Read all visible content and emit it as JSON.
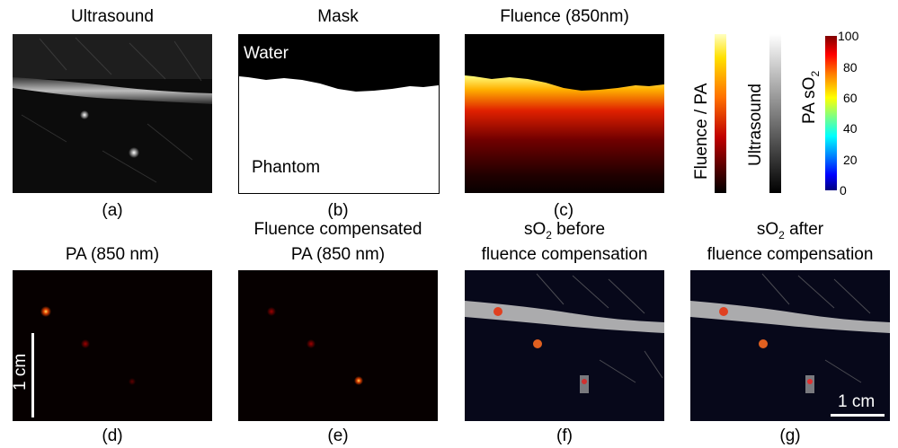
{
  "panels": {
    "a": {
      "title": "Ultrasound",
      "caption": "(a)"
    },
    "b": {
      "title": "Mask",
      "caption": "(b)",
      "label_top": "Water",
      "label_bottom": "Phantom"
    },
    "c": {
      "title": "Fluence (850nm)",
      "caption": "(c)"
    },
    "d": {
      "title": "PA (850 nm)",
      "caption": "(d)",
      "scalebar": "1 cm"
    },
    "e": {
      "title_line1": "Fluence compensated",
      "title_line2": "PA (850 nm)",
      "caption": "(e)"
    },
    "f": {
      "title_line1_pre": "sO",
      "title_line1_sub": "2",
      "title_line1_post": " before",
      "title_line2": "fluence compensation",
      "caption": "(f)"
    },
    "g": {
      "title_line1_pre": "sO",
      "title_line1_sub": "2",
      "title_line1_post": " after",
      "title_line2": "fluence compensation",
      "caption": "(g)",
      "scalebar": "1 cm"
    }
  },
  "colorbars": {
    "fluence_pa": {
      "label": "Fluence / PA"
    },
    "ultrasound": {
      "label": "Ultrasound"
    },
    "pa_so2": {
      "label_pre": "PA sO",
      "label_sub": "2",
      "ticks": [
        "100",
        "80",
        "60",
        "40",
        "20",
        "0"
      ]
    }
  }
}
